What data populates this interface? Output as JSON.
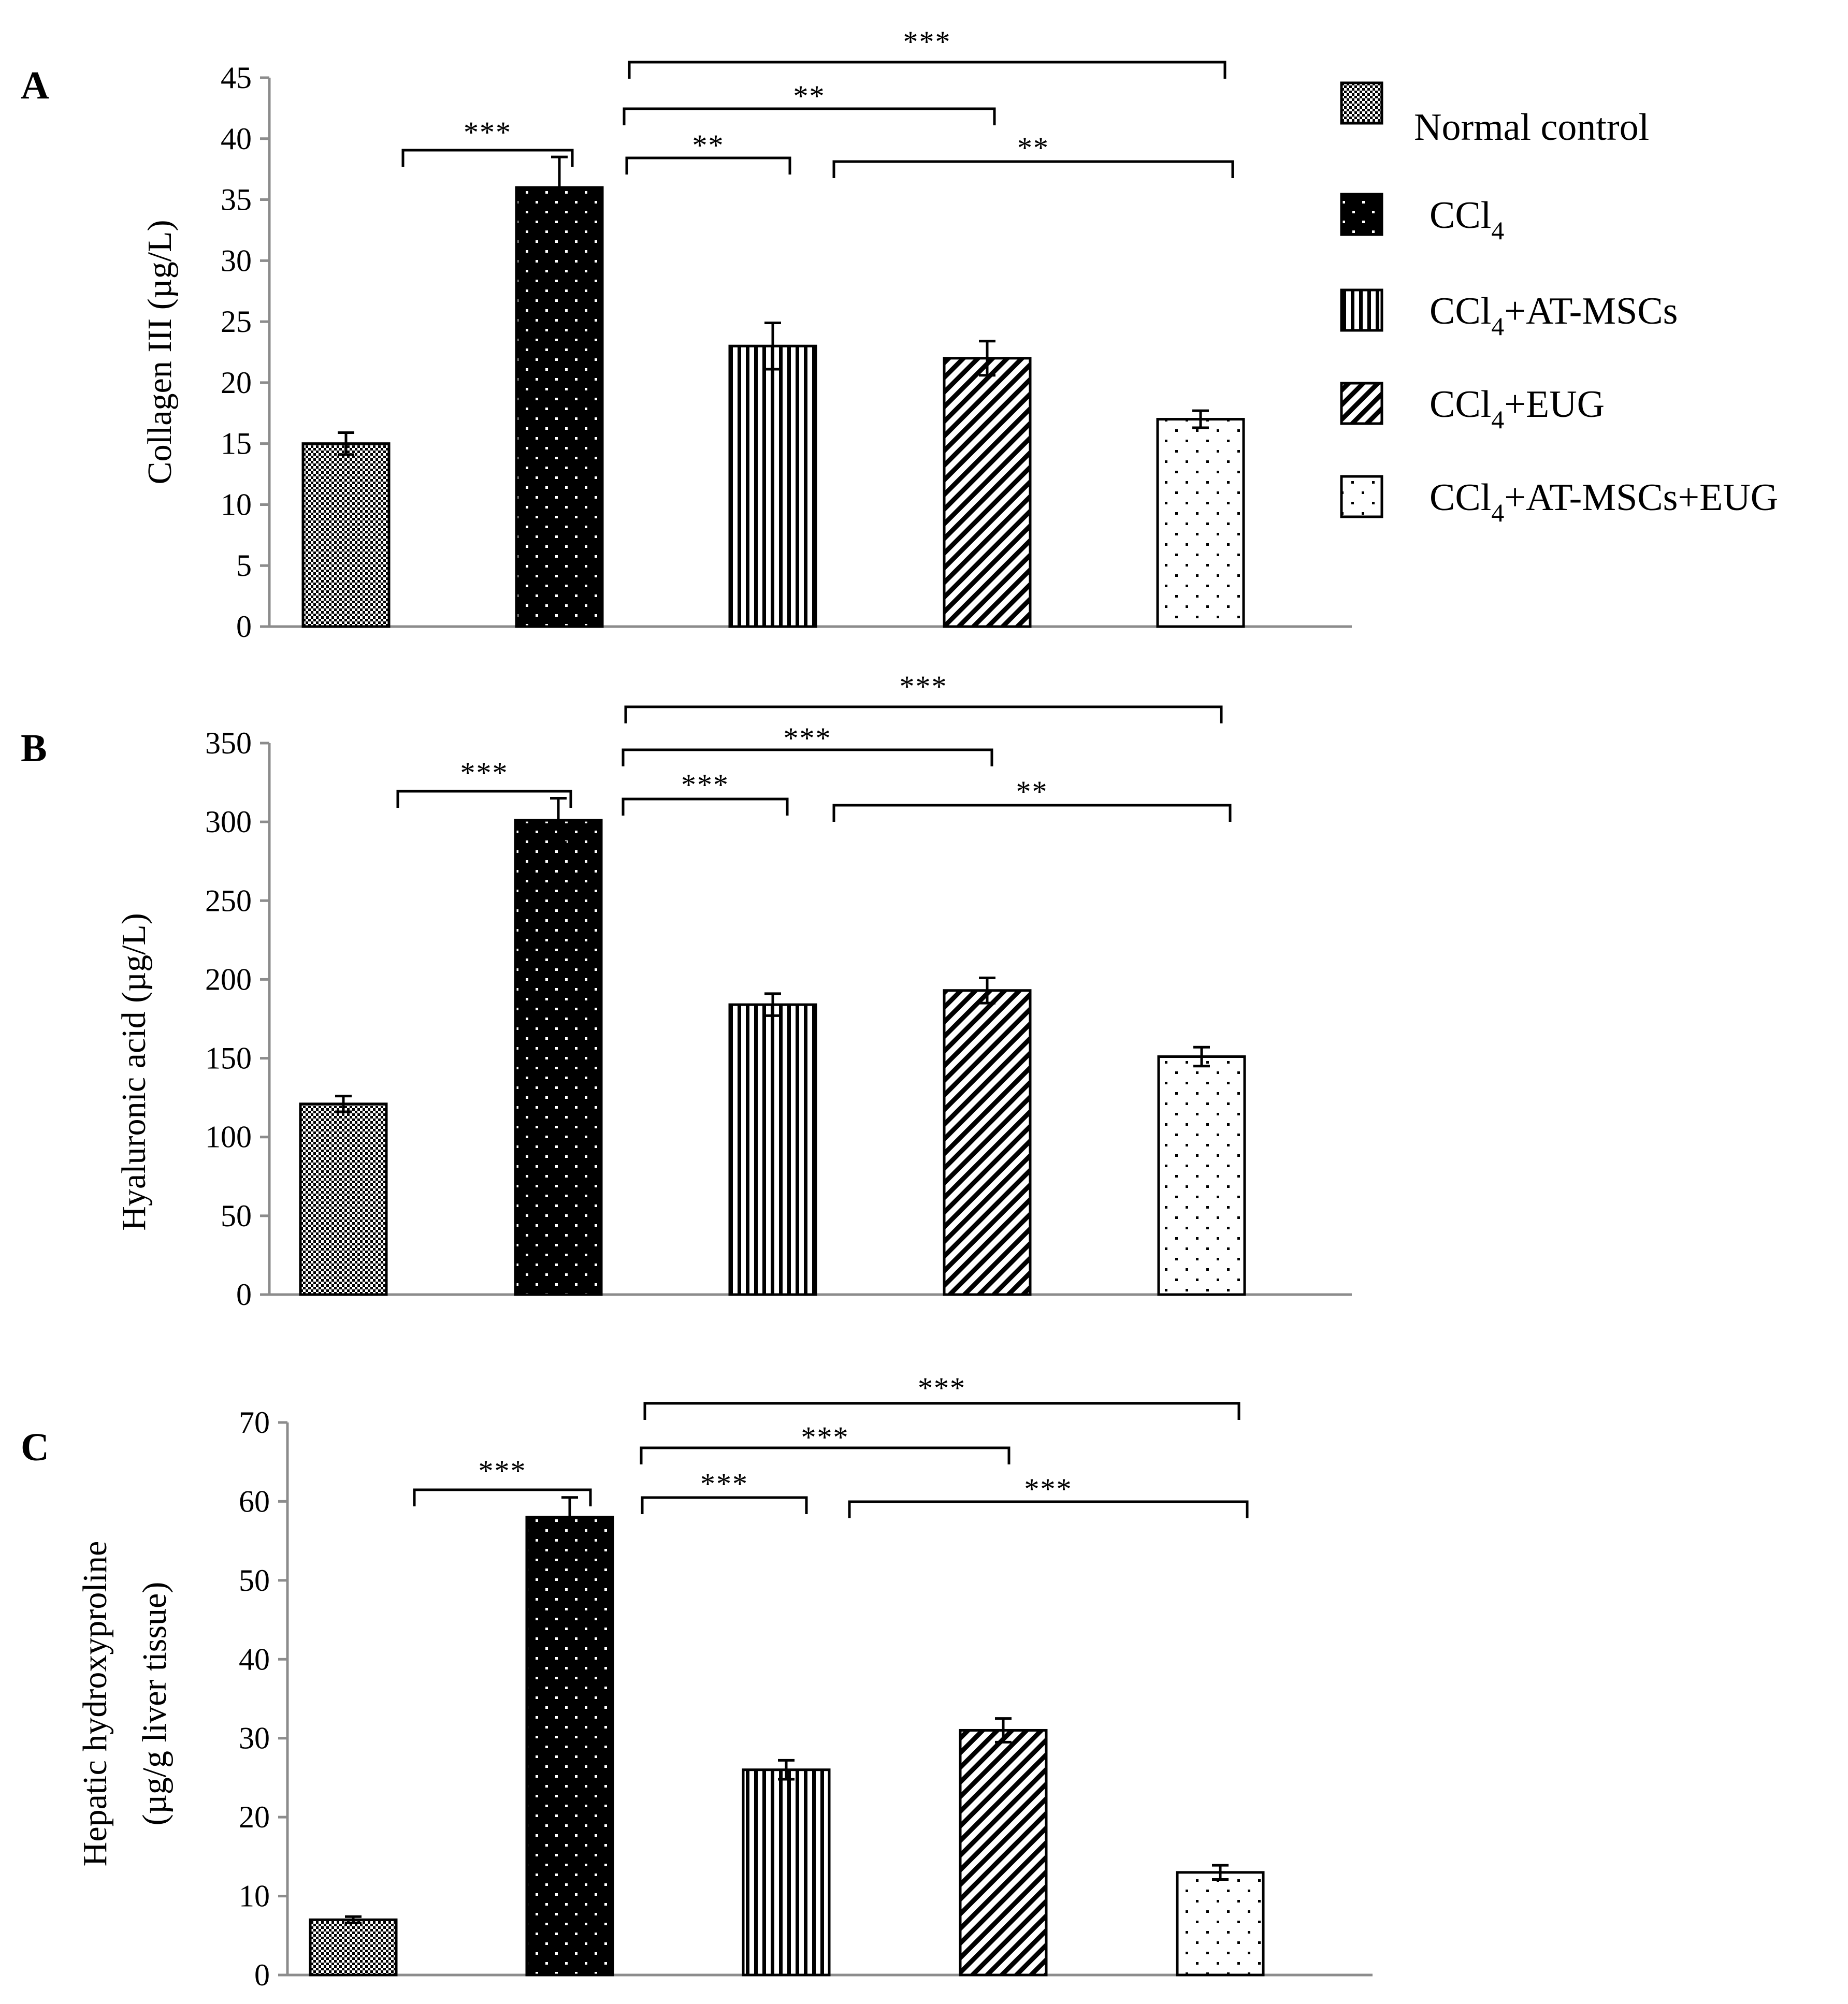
{
  "chart_data": [
    {
      "type": "bar",
      "panel_label": "A",
      "ylabel": "Collagen III (µg/L)",
      "ylim": [
        0,
        45
      ],
      "yticks": [
        "0",
        "5",
        "10",
        "15",
        "20",
        "25",
        "30",
        "35",
        "40",
        "45"
      ],
      "categories": [
        "Normal control",
        "CCl4",
        "CCl4+AT-MSCs",
        "CCl4+EUG",
        "CCl4+AT-MSCs+EUG"
      ],
      "values": [
        15,
        36,
        23,
        22,
        17
      ],
      "errors": [
        0.9,
        2.5,
        1.9,
        1.4,
        0.7
      ],
      "significance": [
        {
          "from": 0,
          "to": 1,
          "label": "***"
        },
        {
          "from": 1,
          "to": 2,
          "label": "**"
        },
        {
          "from": 1,
          "to": 3,
          "label": "**"
        },
        {
          "from": 1,
          "to": 4,
          "label": "***"
        },
        {
          "from": 2,
          "to": 4,
          "label": "**"
        }
      ]
    },
    {
      "type": "bar",
      "panel_label": "B",
      "ylabel": "Hyaluronic acid (µg/L)",
      "ylim": [
        0,
        350
      ],
      "yticks": [
        "0",
        "50",
        "100",
        "150",
        "200",
        "250",
        "300",
        "350"
      ],
      "categories": [
        "Normal control",
        "CCl4",
        "CCl4+AT-MSCs",
        "CCl4+EUG",
        "CCl4+AT-MSCs+EUG"
      ],
      "values": [
        121,
        301,
        184,
        193,
        151
      ],
      "errors": [
        5,
        14,
        7,
        8,
        6
      ],
      "significance": [
        {
          "from": 0,
          "to": 1,
          "label": "***"
        },
        {
          "from": 1,
          "to": 2,
          "label": "***"
        },
        {
          "from": 1,
          "to": 3,
          "label": "***"
        },
        {
          "from": 1,
          "to": 4,
          "label": "***"
        },
        {
          "from": 2,
          "to": 4,
          "label": "**"
        }
      ]
    },
    {
      "type": "bar",
      "panel_label": "C",
      "ylabel": "Hepatic hydroxyproline",
      "ylabel2": "(µg/g liver tissue)",
      "ylim": [
        0,
        70
      ],
      "yticks": [
        "0",
        "10",
        "20",
        "30",
        "40",
        "50",
        "60",
        "70"
      ],
      "categories": [
        "Normal control",
        "CCl4",
        "CCl4+AT-MSCs",
        "CCl4+EUG",
        "CCl4+AT-MSCs+EUG"
      ],
      "values": [
        7,
        58,
        26,
        31,
        13
      ],
      "errors": [
        0.4,
        2.5,
        1.2,
        1.5,
        0.9
      ],
      "significance": [
        {
          "from": 0,
          "to": 1,
          "label": "***"
        },
        {
          "from": 1,
          "to": 2,
          "label": "***"
        },
        {
          "from": 1,
          "to": 3,
          "label": "***"
        },
        {
          "from": 1,
          "to": 4,
          "label": "***"
        },
        {
          "from": 2,
          "to": 4,
          "label": "***"
        }
      ]
    }
  ],
  "legend": [
    {
      "main": "Normal control",
      "pattern": "checker"
    },
    {
      "main": "CCl",
      "sub": "4",
      "rest": "",
      "pattern": "black-dots"
    },
    {
      "main": "CCl",
      "sub": "4",
      "rest": "+AT-MSCs",
      "pattern": "vlines"
    },
    {
      "main": "CCl",
      "sub": "4",
      "rest": "+EUG",
      "pattern": "diag"
    },
    {
      "main": "CCl",
      "sub": "4",
      "rest": "+AT-MSCs+EUG",
      "pattern": "white-dots"
    }
  ],
  "colors": {
    "ink": "#000000",
    "axis": "#8c8c8c",
    "bar_fill": "#ffffff"
  }
}
